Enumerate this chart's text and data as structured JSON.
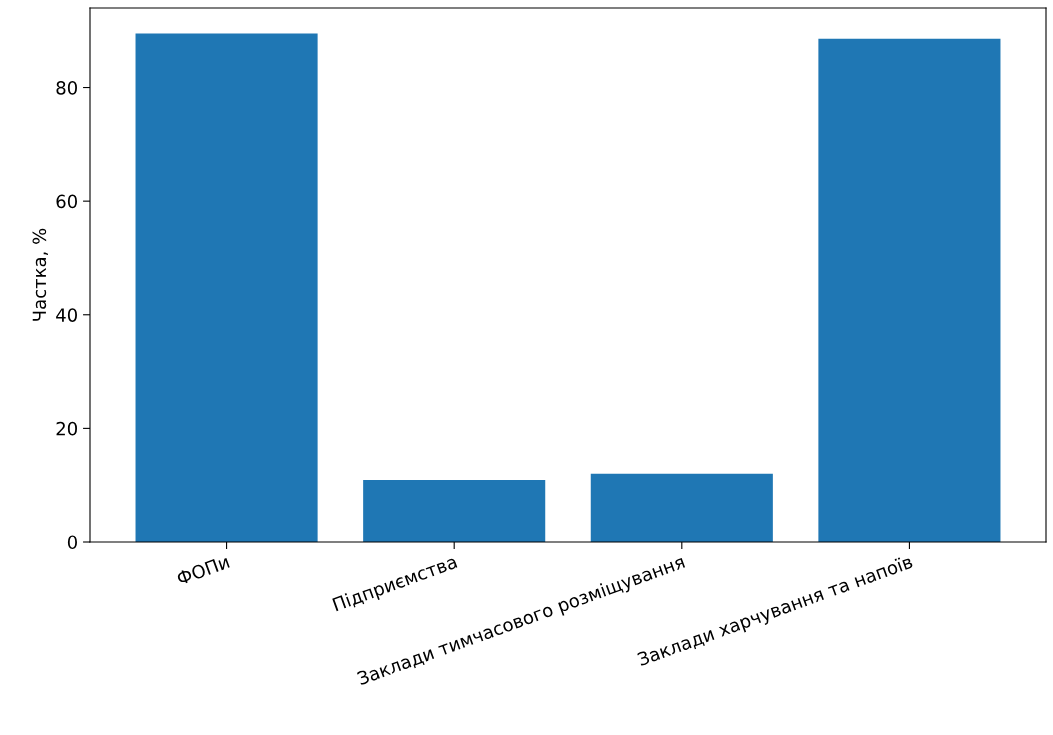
{
  "chart_data": {
    "type": "bar",
    "ylabel": "Частка, %",
    "categories": [
      "ФОПи",
      "Підприємства",
      "Заклади тимчасового розміщування",
      "Заклади харчування та напоїв"
    ],
    "values": [
      89.5,
      10.9,
      12.0,
      88.6
    ],
    "color": "#1f77b4",
    "ylim": [
      0,
      94
    ],
    "yticks": [
      0,
      20,
      40,
      60,
      80
    ],
    "grid": false
  }
}
